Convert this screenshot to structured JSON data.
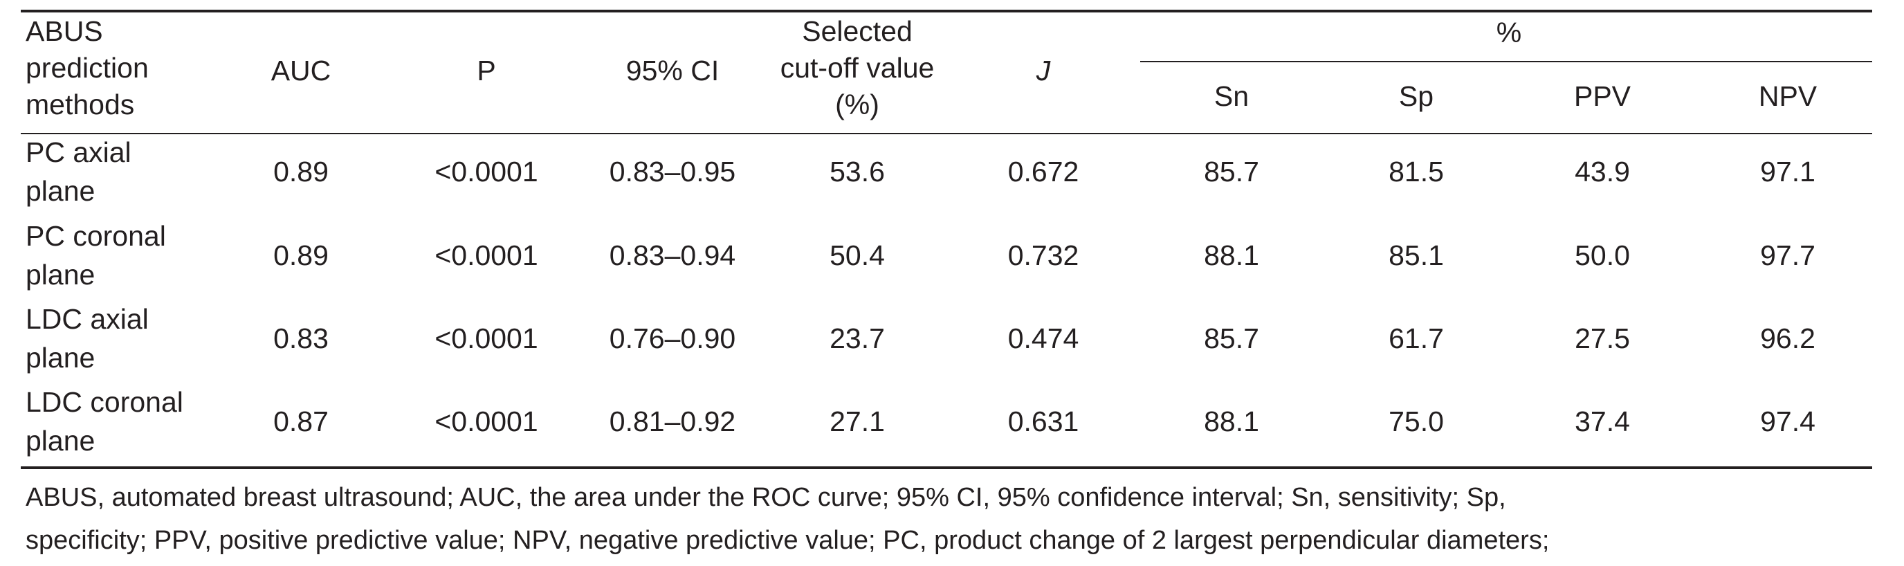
{
  "table": {
    "header": {
      "col_method": [
        "ABUS",
        "prediction",
        "methods"
      ],
      "col_auc": "AUC",
      "col_p": "P",
      "col_ci": "95% CI",
      "col_cutoff": [
        "Selected",
        "cut-off value",
        "(%)"
      ],
      "col_j": "J",
      "group_percent": "%",
      "col_sn": "Sn",
      "col_sp": "Sp",
      "col_ppv": "PPV",
      "col_npv": "NPV"
    },
    "rows": [
      {
        "method": [
          "PC axial",
          "plane"
        ],
        "auc": "0.89",
        "p": "<0.0001",
        "ci": "0.83–0.95",
        "cutoff": "53.6",
        "j": "0.672",
        "sn": "85.7",
        "sp": "81.5",
        "ppv": "43.9",
        "npv": "97.1"
      },
      {
        "method": [
          "PC coronal",
          "plane"
        ],
        "auc": "0.89",
        "p": "<0.0001",
        "ci": "0.83–0.94",
        "cutoff": "50.4",
        "j": "0.732",
        "sn": "88.1",
        "sp": "85.1",
        "ppv": "50.0",
        "npv": "97.7"
      },
      {
        "method": [
          "LDC axial",
          "plane"
        ],
        "auc": "0.83",
        "p": "<0.0001",
        "ci": "0.76–0.90",
        "cutoff": "23.7",
        "j": "0.474",
        "sn": "85.7",
        "sp": "61.7",
        "ppv": "27.5",
        "npv": "96.2"
      },
      {
        "method": [
          "LDC coronal",
          "plane"
        ],
        "auc": "0.87",
        "p": "<0.0001",
        "ci": "0.81–0.92",
        "cutoff": "27.1",
        "j": "0.631",
        "sn": "88.1",
        "sp": "75.0",
        "ppv": "37.4",
        "npv": "97.4"
      }
    ],
    "footnote": [
      "ABUS, automated breast ultrasound; AUC, the area under the ROC curve; 95% CI, 95% confidence interval; Sn, sensitivity; Sp,",
      "specificity; PPV, positive predictive value; NPV, negative predictive value; PC, product change of 2 largest perpendicular diameters;"
    ]
  }
}
